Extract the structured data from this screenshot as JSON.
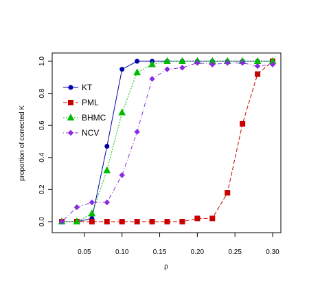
{
  "chart_data": {
    "type": "line",
    "title": "",
    "xlabel": "ρ",
    "ylabel": "proportion of corrected K",
    "xlim": [
      0.02,
      0.3
    ],
    "ylim": [
      0.0,
      1.0
    ],
    "x_ticks": [
      0.05,
      0.1,
      0.15,
      0.2,
      0.25,
      0.3
    ],
    "x_tick_labels": [
      "0.05",
      "0.10",
      "0.15",
      "0.20",
      "0.25",
      "0.30"
    ],
    "y_ticks": [
      0.0,
      0.2,
      0.4,
      0.6,
      0.8,
      1.0
    ],
    "y_tick_labels": [
      "0.0",
      "0.2",
      "0.4",
      "0.6",
      "0.8",
      "1.0"
    ],
    "grid": false,
    "legend_position": "left",
    "x": [
      0.02,
      0.04,
      0.06,
      0.08,
      0.1,
      0.12,
      0.14,
      0.16,
      0.18,
      0.2,
      0.22,
      0.24,
      0.26,
      0.28,
      0.3
    ],
    "series": [
      {
        "name": "KT",
        "color": "#0000aa",
        "marker": "circle",
        "line_style": "solid",
        "values": [
          0.0,
          0.0,
          0.02,
          0.47,
          0.95,
          1.0,
          1.0,
          1.0,
          1.0,
          1.0,
          1.0,
          1.0,
          1.0,
          1.0,
          1.0
        ]
      },
      {
        "name": "PML",
        "color": "#c80000",
        "marker": "square",
        "line_style": "dashed",
        "values": [
          0.0,
          0.0,
          0.0,
          0.0,
          0.0,
          0.0,
          0.0,
          0.0,
          0.0,
          0.02,
          0.02,
          0.18,
          0.61,
          0.92,
          1.0
        ]
      },
      {
        "name": "BHMC",
        "color": "#00bb00",
        "marker": "triangle",
        "line_style": "dotted",
        "values": [
          0.0,
          0.0,
          0.05,
          0.32,
          0.68,
          0.93,
          0.98,
          1.0,
          1.0,
          1.0,
          1.0,
          1.0,
          1.0,
          1.0,
          1.0
        ]
      },
      {
        "name": "NCV",
        "color": "#8a2be2",
        "marker": "diamond",
        "line_style": "dotdash",
        "values": [
          0.0,
          0.09,
          0.12,
          0.12,
          0.29,
          0.56,
          0.89,
          0.95,
          0.96,
          0.99,
          0.98,
          0.99,
          0.99,
          0.97,
          0.98
        ]
      }
    ]
  }
}
